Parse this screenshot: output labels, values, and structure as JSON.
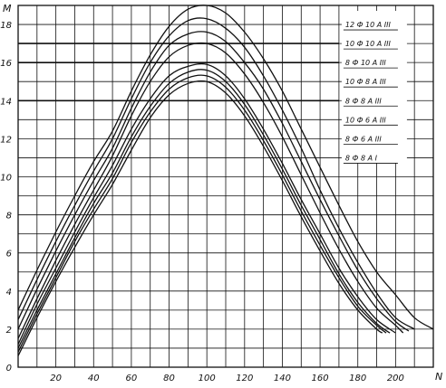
{
  "chart_data": {
    "type": "line",
    "title": "",
    "xlabel": "N",
    "ylabel": "M",
    "xlim": [
      0,
      220
    ],
    "ylim": [
      0,
      19
    ],
    "x_ticks": [
      20,
      40,
      60,
      80,
      100,
      120,
      140,
      160,
      180,
      200
    ],
    "y_ticks": [
      0,
      2,
      4,
      6,
      8,
      10,
      12,
      14,
      16,
      18
    ],
    "grid": true,
    "horizontal_lines": [
      17,
      16,
      14
    ],
    "legend_position": "top-right",
    "series": [
      {
        "name": "12 Ф 10 A III",
        "x": [
          0,
          10,
          20,
          30,
          40,
          50,
          60,
          70,
          80,
          90,
          100,
          110,
          120,
          130,
          140,
          150,
          160,
          170,
          180,
          190,
          200,
          210,
          220
        ],
        "y": [
          3.0,
          5.1,
          7.1,
          9.0,
          10.8,
          12.4,
          14.5,
          16.4,
          17.9,
          18.8,
          19.0,
          18.6,
          17.6,
          16.2,
          14.5,
          12.5,
          10.5,
          8.5,
          6.6,
          5.0,
          3.8,
          2.6,
          2.0
        ]
      },
      {
        "name": "10 Ф 10 A III",
        "x": [
          0,
          10,
          20,
          30,
          40,
          50,
          60,
          70,
          80,
          90,
          100,
          110,
          120,
          130,
          140,
          150,
          160,
          170,
          180,
          190,
          200,
          210
        ],
        "y": [
          2.5,
          4.6,
          6.6,
          8.5,
          10.3,
          12.0,
          14.1,
          16.0,
          17.4,
          18.2,
          18.3,
          17.8,
          16.8,
          15.3,
          13.5,
          11.5,
          9.3,
          7.3,
          5.5,
          3.9,
          2.6,
          2.0
        ]
      },
      {
        "name": "8 Ф 10 A III",
        "x": [
          0,
          10,
          20,
          30,
          40,
          50,
          60,
          70,
          80,
          90,
          100,
          110,
          120,
          130,
          140,
          150,
          160,
          170,
          180,
          190,
          200,
          207
        ],
        "y": [
          2.0,
          4.1,
          6.1,
          8.0,
          9.8,
          11.5,
          13.6,
          15.5,
          16.9,
          17.5,
          17.6,
          17.1,
          16.0,
          14.6,
          12.8,
          10.8,
          8.8,
          6.9,
          5.1,
          3.6,
          2.4,
          1.9
        ]
      },
      {
        "name": "10 Ф 8 A III",
        "x": [
          0,
          10,
          20,
          30,
          40,
          50,
          60,
          70,
          80,
          90,
          100,
          110,
          120,
          130,
          140,
          150,
          160,
          170,
          180,
          190,
          200,
          204
        ],
        "y": [
          1.5,
          3.6,
          5.6,
          7.5,
          9.3,
          11.1,
          13.2,
          15.0,
          16.3,
          16.9,
          17.0,
          16.5,
          15.4,
          13.9,
          12.1,
          10.1,
          8.1,
          6.2,
          4.5,
          3.1,
          2.2,
          1.8
        ]
      },
      {
        "name": "8 Ф 8 A III",
        "x": [
          0,
          10,
          20,
          30,
          40,
          50,
          60,
          70,
          80,
          90,
          100,
          110,
          120,
          130,
          140,
          150,
          160,
          170,
          180,
          190,
          200
        ],
        "y": [
          1.2,
          3.3,
          5.2,
          7.1,
          8.9,
          10.6,
          12.5,
          14.1,
          15.3,
          15.8,
          15.9,
          15.3,
          14.1,
          12.5,
          10.7,
          8.8,
          7.0,
          5.2,
          3.7,
          2.5,
          1.8
        ]
      },
      {
        "name": "10 Ф 6 A III",
        "x": [
          0,
          10,
          20,
          30,
          40,
          50,
          60,
          70,
          80,
          90,
          100,
          110,
          120,
          130,
          140,
          150,
          160,
          170,
          180,
          190,
          197
        ],
        "y": [
          1.0,
          3.0,
          4.9,
          6.8,
          8.6,
          10.2,
          12.1,
          13.7,
          14.9,
          15.5,
          15.6,
          15.0,
          13.8,
          12.2,
          10.4,
          8.5,
          6.7,
          4.9,
          3.4,
          2.3,
          1.8
        ]
      },
      {
        "name": "8 Ф 6 A III",
        "x": [
          0,
          10,
          20,
          30,
          40,
          50,
          60,
          70,
          80,
          90,
          100,
          110,
          120,
          130,
          140,
          150,
          160,
          170,
          180,
          190,
          195
        ],
        "y": [
          0.8,
          2.8,
          4.7,
          6.6,
          8.3,
          9.9,
          11.8,
          13.4,
          14.6,
          15.2,
          15.3,
          14.7,
          13.5,
          11.9,
          10.1,
          8.2,
          6.4,
          4.7,
          3.2,
          2.2,
          1.8
        ]
      },
      {
        "name": "8 Ф 8 A I",
        "x": [
          0,
          10,
          20,
          30,
          40,
          50,
          60,
          70,
          80,
          90,
          100,
          110,
          120,
          130,
          140,
          150,
          160,
          170,
          180,
          190,
          193
        ],
        "y": [
          0.6,
          2.6,
          4.5,
          6.3,
          8.0,
          9.6,
          11.4,
          13.1,
          14.3,
          14.9,
          15.0,
          14.4,
          13.2,
          11.6,
          9.8,
          7.9,
          6.1,
          4.4,
          3.0,
          2.0,
          1.8
        ]
      }
    ]
  }
}
